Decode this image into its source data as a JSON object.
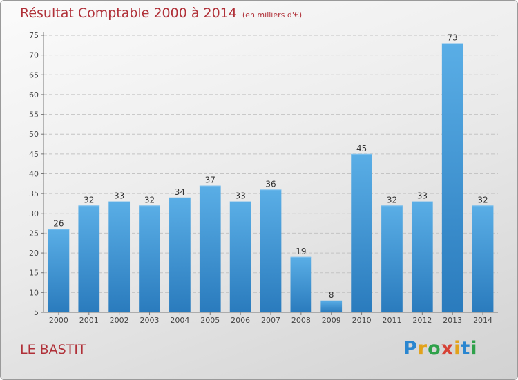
{
  "header": {
    "title": "Résultat Comptable 2000 à 2014",
    "unit": "(en milliers d'€)"
  },
  "footer": {
    "commune": "LE BASTIT",
    "logo": "Proxiti"
  },
  "colors": {
    "bar": "#3d93d6",
    "title": "#b03038"
  },
  "chart_data": {
    "type": "bar",
    "categories": [
      "2000",
      "2001",
      "2002",
      "2003",
      "2004",
      "2005",
      "2006",
      "2007",
      "2008",
      "2009",
      "2010",
      "2011",
      "2012",
      "2013",
      "2014"
    ],
    "values": [
      26,
      32,
      33,
      32,
      34,
      37,
      33,
      36,
      19,
      8,
      45,
      32,
      33,
      73,
      32
    ],
    "title": "Résultat Comptable 2000 à 2014",
    "xlabel": "",
    "ylabel": "",
    "ylim": [
      5,
      75
    ],
    "yticks": [
      5,
      10,
      15,
      20,
      25,
      30,
      35,
      40,
      45,
      50,
      55,
      60,
      65,
      70,
      75
    ],
    "grid": true,
    "data_labels": true
  }
}
